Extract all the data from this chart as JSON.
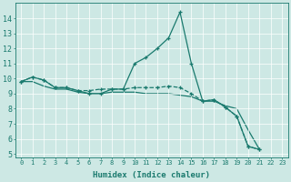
{
  "xlabel": "Humidex (Indice chaleur)",
  "ylabel": "",
  "bg_color": "#cde8e4",
  "line_color": "#1a7a6e",
  "xlim": [
    -0.5,
    23.5
  ],
  "ylim": [
    4.8,
    15.0
  ],
  "yticks": [
    5,
    6,
    7,
    8,
    9,
    10,
    11,
    12,
    13,
    14
  ],
  "xticks": [
    0,
    1,
    2,
    3,
    4,
    5,
    6,
    7,
    8,
    9,
    10,
    11,
    12,
    13,
    14,
    15,
    16,
    17,
    18,
    19,
    20,
    21,
    22,
    23
  ],
  "series": [
    [
      9.8,
      10.1,
      9.9,
      9.4,
      9.4,
      9.2,
      9.0,
      9.0,
      9.3,
      9.3,
      11.0,
      11.4,
      12.0,
      12.7,
      14.4,
      11.0,
      8.5,
      8.6,
      8.1,
      7.5,
      5.5,
      5.3
    ],
    [
      9.8,
      10.1,
      9.9,
      9.4,
      9.4,
      9.2,
      9.2,
      9.3,
      9.3,
      9.3,
      9.4,
      9.4,
      9.4,
      9.5,
      9.4,
      9.0,
      8.5,
      8.6,
      8.1,
      7.5,
      5.5,
      5.3
    ],
    [
      9.8,
      9.8,
      9.5,
      9.3,
      9.3,
      9.1,
      9.0,
      9.0,
      9.1,
      9.1,
      9.1,
      9.0,
      9.0,
      9.0,
      8.9,
      8.8,
      8.5,
      8.5,
      8.2,
      8.0,
      6.6,
      5.3
    ]
  ],
  "x_start": 0,
  "marker_size": 2.5,
  "linewidth": 0.9,
  "xlabel_fontsize": 6.5,
  "xtick_fontsize": 5.0,
  "ytick_fontsize": 6.0
}
